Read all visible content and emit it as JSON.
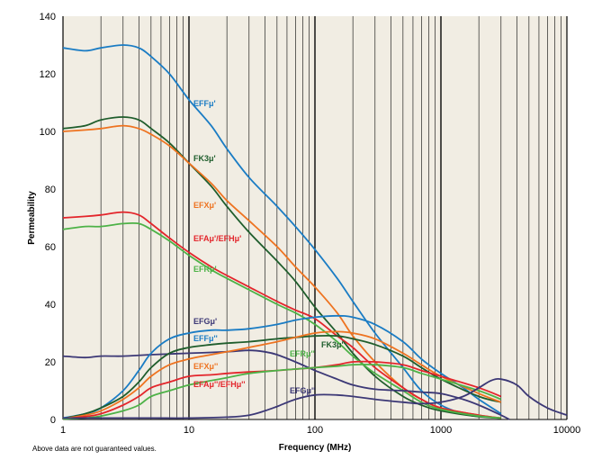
{
  "chart_data": {
    "type": "line",
    "xscale": "log",
    "xlim": [
      1,
      10000
    ],
    "ylim": [
      0,
      140
    ],
    "xlabel": "Frequency (MHz)",
    "ylabel": "Permeability",
    "x_ticks": [
      1,
      10,
      100,
      1000,
      10000
    ],
    "x_tick_labels": [
      "1",
      "10",
      "100",
      "1000",
      "10000"
    ],
    "y_ticks": [
      0,
      20,
      40,
      60,
      80,
      100,
      120,
      140
    ],
    "y_tick_labels": [
      "0",
      "20",
      "40",
      "60",
      "80",
      "100",
      "120",
      "140"
    ],
    "grid": "vertical-log-minor",
    "background": "#f1ede3",
    "note": "Above data are not guaranteed values.",
    "series": [
      {
        "name": "EFFμ'",
        "color": "#1a7cc4",
        "x": [
          1,
          1.5,
          2,
          3,
          4,
          5,
          7,
          10,
          15,
          20,
          30,
          50,
          70,
          100,
          150,
          200,
          300,
          500,
          700,
          1000,
          1500,
          2000
        ],
        "y": [
          129,
          128,
          129,
          130,
          129,
          126,
          120,
          111,
          102,
          94,
          84,
          74,
          67,
          59,
          49,
          41,
          30,
          18,
          10,
          5,
          2,
          1
        ]
      },
      {
        "name": "FK3μ'",
        "color": "#1f5d2c",
        "x": [
          1,
          1.5,
          2,
          3,
          4,
          5,
          7,
          10,
          15,
          20,
          30,
          50,
          70,
          100,
          150,
          200,
          300,
          500,
          700,
          1000,
          2000,
          3000
        ],
        "y": [
          101,
          102,
          104,
          105,
          104,
          101,
          96,
          89,
          81,
          74,
          65,
          55,
          48,
          39,
          30,
          23,
          15,
          8,
          5,
          3,
          1,
          0.5
        ]
      },
      {
        "name": "EFXμ'",
        "color": "#ee7320",
        "x": [
          1,
          1.5,
          2,
          3,
          4,
          5,
          7,
          10,
          15,
          20,
          30,
          50,
          70,
          100,
          150,
          200,
          300,
          500,
          700,
          1000,
          2000,
          3000
        ],
        "y": [
          100,
          100.5,
          101,
          102,
          101,
          99,
          95,
          89,
          82,
          76,
          69,
          60,
          53,
          46,
          37,
          29,
          20,
          11,
          7,
          4,
          1.5,
          0.5
        ]
      },
      {
        "name": "EFAμ'/EFHμ'",
        "color": "#e3252b",
        "x": [
          1,
          1.5,
          2,
          3,
          4,
          5,
          7,
          10,
          15,
          20,
          30,
          50,
          70,
          100,
          150,
          200,
          300,
          500,
          700,
          1000,
          2000,
          3000
        ],
        "y": [
          70,
          70.5,
          71,
          72,
          71,
          68,
          63,
          58,
          53,
          50,
          46,
          41,
          38,
          35,
          29,
          25,
          18,
          11,
          7,
          4,
          1.5,
          0.5
        ]
      },
      {
        "name": "EFRμ'",
        "color": "#4db247",
        "x": [
          1,
          1.5,
          2,
          3,
          4,
          5,
          7,
          10,
          15,
          20,
          30,
          50,
          70,
          100,
          150,
          200,
          300,
          500,
          700,
          1000,
          2000,
          3000
        ],
        "y": [
          66,
          67,
          67,
          68,
          68,
          66,
          62,
          57,
          52,
          49,
          45,
          40,
          37,
          33,
          27,
          22,
          16,
          10,
          6,
          3.5,
          1.2,
          0.5
        ]
      },
      {
        "name": "EFGμ'",
        "color": "#3c3876",
        "x": [
          1,
          1.5,
          2,
          3,
          5,
          10,
          20,
          30,
          40,
          50,
          70,
          100,
          150,
          200,
          300,
          500,
          700,
          1000,
          1500,
          2000,
          3000,
          3500
        ],
        "y": [
          22,
          21.5,
          22,
          22,
          22.5,
          23,
          23.5,
          24,
          23.5,
          22.5,
          20,
          17,
          14,
          12,
          10.5,
          10,
          9.5,
          9,
          7,
          5,
          1.5,
          0
        ]
      },
      {
        "name": "EFFμ''",
        "color": "#1a7cc4",
        "x": [
          1,
          1.5,
          2,
          3,
          4,
          5,
          7,
          10,
          15,
          20,
          30,
          50,
          70,
          100,
          150,
          200,
          300,
          500,
          700,
          1000,
          1500,
          2000,
          3000
        ],
        "y": [
          0.5,
          2,
          4,
          10,
          17,
          23,
          28,
          30,
          31,
          31,
          31.5,
          33,
          34.5,
          35.5,
          36,
          35.5,
          33,
          27,
          21,
          16,
          11,
          7,
          2
        ]
      },
      {
        "name": "FK3μ''",
        "color": "#1f5d2c",
        "x": [
          1,
          1.5,
          2,
          3,
          4,
          5,
          7,
          10,
          15,
          20,
          30,
          50,
          70,
          100,
          150,
          200,
          300,
          500,
          700,
          1000,
          2000,
          3000
        ],
        "y": [
          0.3,
          2,
          4,
          8,
          13,
          18,
          23,
          25,
          26,
          26.5,
          27,
          28,
          28.5,
          29,
          29,
          28,
          26,
          22,
          18,
          14,
          8,
          6
        ]
      },
      {
        "name": "EFXμ''",
        "color": "#ee7320",
        "x": [
          1,
          1.5,
          2,
          3,
          4,
          5,
          7,
          10,
          15,
          20,
          30,
          50,
          70,
          100,
          150,
          200,
          300,
          500,
          700,
          1000,
          2000,
          3000
        ],
        "y": [
          0.3,
          1.5,
          3,
          7,
          11,
          15,
          19,
          21,
          22.5,
          23.5,
          25,
          27,
          28.5,
          30,
          30.5,
          30,
          28,
          23,
          19,
          15,
          9,
          6
        ]
      },
      {
        "name": "EFAμ''/EFHμ''",
        "color": "#e3252b",
        "x": [
          1,
          1.5,
          2,
          3,
          4,
          5,
          7,
          10,
          15,
          20,
          30,
          50,
          70,
          100,
          150,
          200,
          300,
          500,
          700,
          1000,
          2000,
          3000
        ],
        "y": [
          0.2,
          1,
          2,
          5,
          8,
          11,
          13,
          15,
          15.5,
          16,
          16.5,
          17,
          17.5,
          18,
          19,
          20,
          20,
          19,
          17,
          15,
          11,
          8
        ]
      },
      {
        "name": "EFRμ''",
        "color": "#4db247",
        "x": [
          1,
          1.5,
          2,
          3,
          4,
          5,
          7,
          10,
          15,
          20,
          30,
          50,
          70,
          100,
          150,
          200,
          300,
          500,
          700,
          1000,
          2000,
          3000
        ],
        "y": [
          0.2,
          0.5,
          1.2,
          3,
          5,
          8,
          10,
          12,
          13.5,
          14.5,
          16,
          17,
          17.5,
          18,
          18.5,
          19,
          19,
          18,
          16,
          14,
          10,
          7
        ]
      },
      {
        "name": "EFGμ''",
        "color": "#3c3876",
        "x": [
          1,
          2,
          5,
          10,
          20,
          30,
          40,
          50,
          70,
          100,
          150,
          200,
          300,
          500,
          700,
          1000,
          1500,
          2000,
          2500,
          3000,
          4000,
          5000,
          7000,
          10000
        ],
        "y": [
          0.5,
          0.5,
          0.5,
          0.5,
          0.8,
          1.5,
          3,
          4.5,
          7,
          8.5,
          8.5,
          8,
          7,
          6,
          5.5,
          6,
          8,
          11,
          13.5,
          14,
          12,
          8,
          4,
          1.5
        ]
      }
    ]
  }
}
